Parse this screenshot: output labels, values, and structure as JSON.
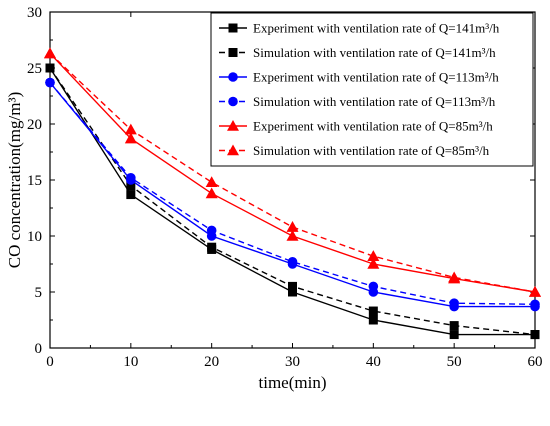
{
  "chart_data": {
    "type": "line",
    "xlabel": "time(min)",
    "ylabel": "CO concentration(mg/m³)",
    "xlim": [
      0,
      60
    ],
    "ylim": [
      0,
      30
    ],
    "xticks": [
      0,
      10,
      20,
      30,
      40,
      50,
      60
    ],
    "yticks": [
      0,
      5,
      10,
      15,
      20,
      25,
      30
    ],
    "grid": false,
    "legend_position": "top-right",
    "x": [
      0,
      10,
      20,
      30,
      40,
      50,
      60
    ],
    "series": [
      {
        "name": "Experiment with ventilation rate of Q=141m³/h",
        "values": [
          25,
          13.7,
          8.8,
          5.0,
          2.5,
          1.2,
          1.2
        ],
        "color": "#000000",
        "marker": "square",
        "dashed": false
      },
      {
        "name": "Simulation with ventilation rate of Q=141m³/h",
        "values": [
          25,
          14.5,
          9.0,
          5.5,
          3.3,
          2.0,
          1.2
        ],
        "color": "#000000",
        "marker": "square",
        "dashed": true
      },
      {
        "name": "Experiment with ventilation rate of Q=113m³/h",
        "values": [
          23.7,
          15.0,
          10.0,
          7.5,
          5.0,
          3.7,
          3.7
        ],
        "color": "#0000ff",
        "marker": "circle",
        "dashed": false
      },
      {
        "name": "Simulation with ventilation rate of Q=113m³/h",
        "values": [
          23.7,
          15.2,
          10.5,
          7.7,
          5.5,
          4.0,
          3.9
        ],
        "color": "#0000ff",
        "marker": "circle",
        "dashed": true
      },
      {
        "name": "Experiment with ventilation rate of Q=85m³/h",
        "values": [
          26.3,
          18.7,
          13.8,
          10.0,
          7.5,
          6.2,
          5.0
        ],
        "color": "#ff0000",
        "marker": "triangle",
        "dashed": false
      },
      {
        "name": "Simulation with ventilation rate of Q=85m³/h",
        "values": [
          26.3,
          19.5,
          14.8,
          10.8,
          8.2,
          6.3,
          5.0
        ],
        "color": "#ff0000",
        "marker": "triangle",
        "dashed": true
      }
    ]
  }
}
